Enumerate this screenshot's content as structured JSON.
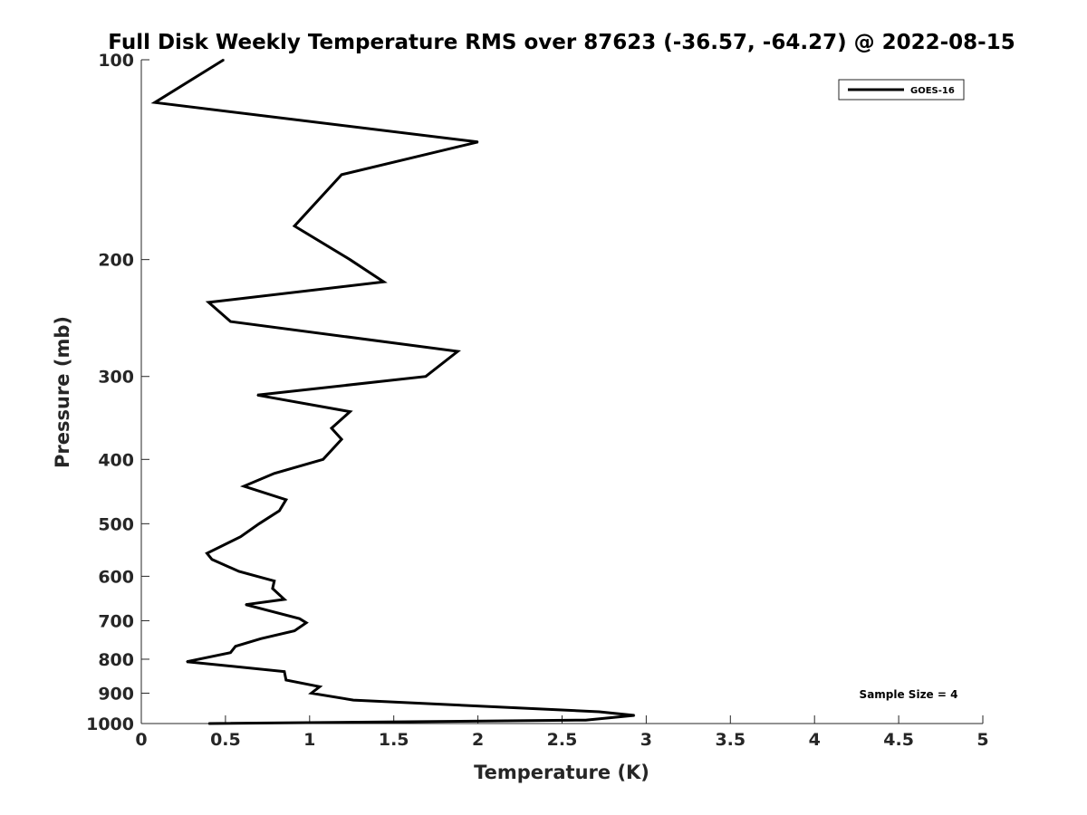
{
  "chart_data": {
    "type": "line",
    "title": "Full Disk Weekly Temperature RMS over 87623 (-36.57, -64.27) @ 2022-08-15",
    "xlabel": "Temperature (K)",
    "ylabel": "Pressure (mb)",
    "xlim": [
      0,
      5
    ],
    "ylim": [
      100,
      1000
    ],
    "yscale": "log",
    "y_reversed": true,
    "xticks": [
      "0",
      "0.5",
      "1",
      "1.5",
      "2",
      "2.5",
      "3",
      "3.5",
      "4",
      "4.5",
      "5"
    ],
    "yticks": [
      "100",
      "200",
      "300",
      "400",
      "500",
      "600",
      "700",
      "800",
      "900",
      "1000"
    ],
    "grid": false,
    "legend_position": "top-right",
    "series": [
      {
        "name": "GOES-16",
        "color": "#000000",
        "points": [
          [
            0.49,
            100
          ],
          [
            0.08,
            116
          ],
          [
            2.0,
            133
          ],
          [
            1.19,
            149
          ],
          [
            0.91,
            178
          ],
          [
            1.24,
            200
          ],
          [
            1.44,
            216
          ],
          [
            0.4,
            232
          ],
          [
            0.53,
            248
          ],
          [
            1.88,
            275
          ],
          [
            1.69,
            300
          ],
          [
            0.69,
            320
          ],
          [
            1.24,
            339
          ],
          [
            1.13,
            359
          ],
          [
            1.19,
            373
          ],
          [
            1.08,
            400
          ],
          [
            0.79,
            420
          ],
          [
            0.61,
            439
          ],
          [
            0.86,
            460
          ],
          [
            0.82,
            478
          ],
          [
            0.7,
            500
          ],
          [
            0.59,
            523
          ],
          [
            0.39,
            554
          ],
          [
            0.42,
            566
          ],
          [
            0.58,
            590
          ],
          [
            0.79,
            610
          ],
          [
            0.78,
            626
          ],
          [
            0.85,
            650
          ],
          [
            0.62,
            662
          ],
          [
            0.94,
            695
          ],
          [
            0.98,
            705
          ],
          [
            0.91,
            725
          ],
          [
            0.71,
            745
          ],
          [
            0.56,
            765
          ],
          [
            0.53,
            782
          ],
          [
            0.27,
            807
          ],
          [
            0.85,
            835
          ],
          [
            0.86,
            860
          ],
          [
            1.06,
            880
          ],
          [
            1.01,
            900
          ],
          [
            1.26,
            922
          ],
          [
            2.72,
            960
          ],
          [
            2.93,
            972
          ],
          [
            2.64,
            988
          ],
          [
            0.4,
            1000
          ]
        ]
      }
    ],
    "annotation": "Sample Size = 4"
  }
}
